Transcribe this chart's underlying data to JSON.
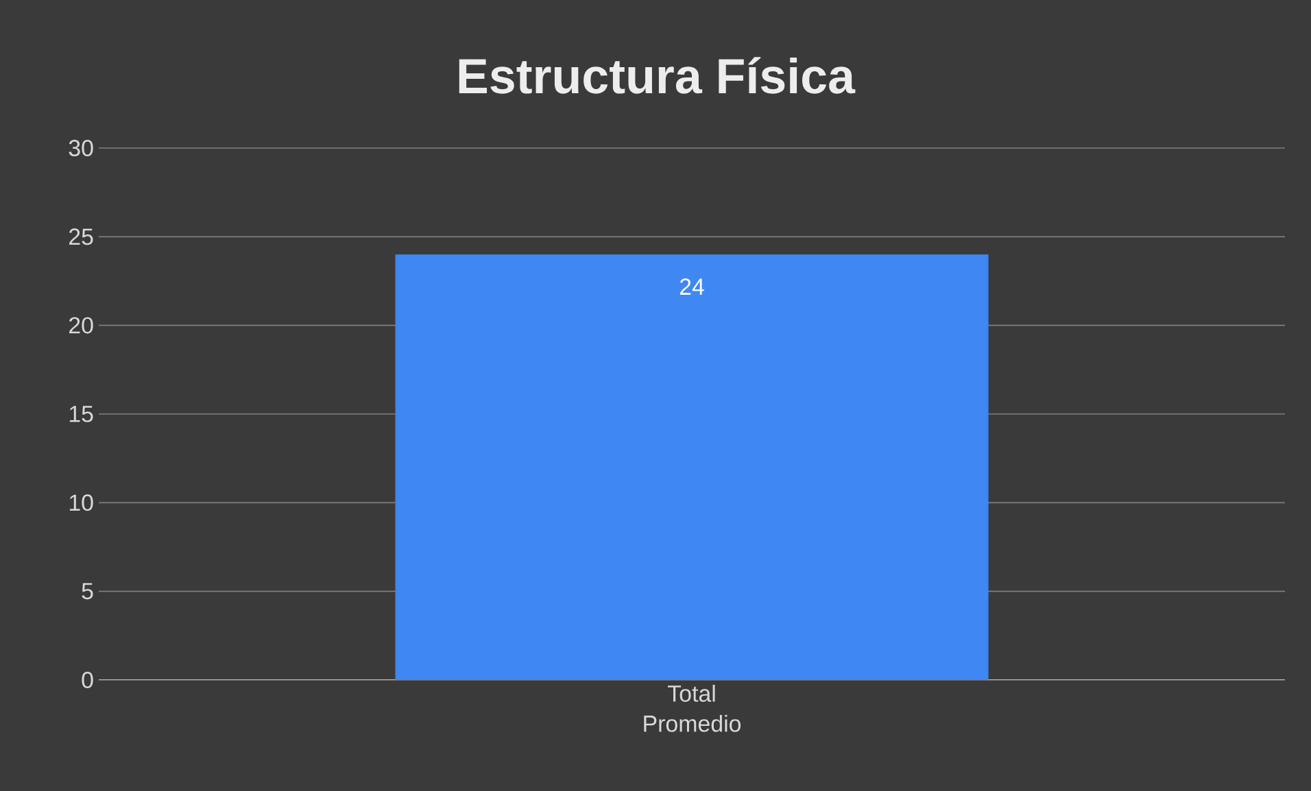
{
  "chart_data": {
    "type": "bar",
    "title": "Estructura Física",
    "categories": [
      "Total Promedio"
    ],
    "values": [
      24
    ],
    "color": "#3f87f2",
    "ylim": [
      0,
      30
    ],
    "yticks": [
      0,
      5,
      10,
      15,
      20,
      25,
      30
    ],
    "grid": "y",
    "data_labels": true
  }
}
